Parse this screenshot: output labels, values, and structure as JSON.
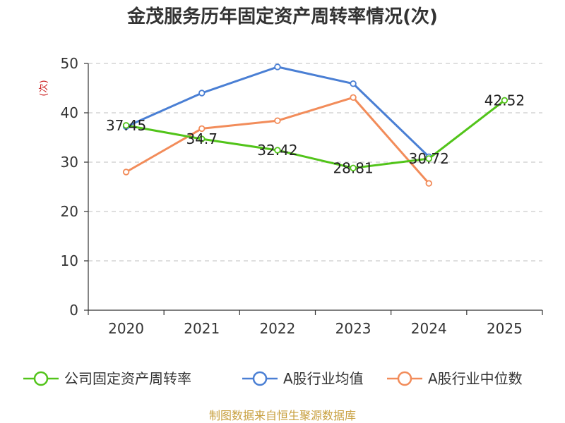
{
  "chart_data": {
    "type": "line",
    "title": "金茂服务历年固定资产周转率情况(次)",
    "ylabel": "(次)",
    "xlabel": "",
    "categories": [
      "2020",
      "2021",
      "2022",
      "2023",
      "2024",
      "2025"
    ],
    "ylim": [
      0,
      50
    ],
    "yticks": [
      0,
      10,
      20,
      30,
      40,
      50
    ],
    "grid": true,
    "legend_position": "bottom",
    "series": [
      {
        "name": "公司固定资产周转率",
        "color": "#52c41a",
        "values": [
          37.45,
          34.7,
          32.42,
          28.81,
          30.72,
          42.52
        ],
        "labels": [
          "37.45",
          "34.7",
          "32.42",
          "28.81",
          "30.72",
          "42.52"
        ]
      },
      {
        "name": "A股行业均值",
        "color": "#4a7fd4",
        "values": [
          37.2,
          44.0,
          49.3,
          45.9,
          31.1,
          null
        ]
      },
      {
        "name": "A股行业中位数",
        "color": "#f28c5a",
        "values": [
          28.0,
          36.8,
          38.4,
          43.1,
          25.7,
          null
        ]
      }
    ],
    "source": "制图数据来自恒生聚源数据库",
    "source_color": "#c8a040",
    "ylabel_color": "#cc2222"
  }
}
